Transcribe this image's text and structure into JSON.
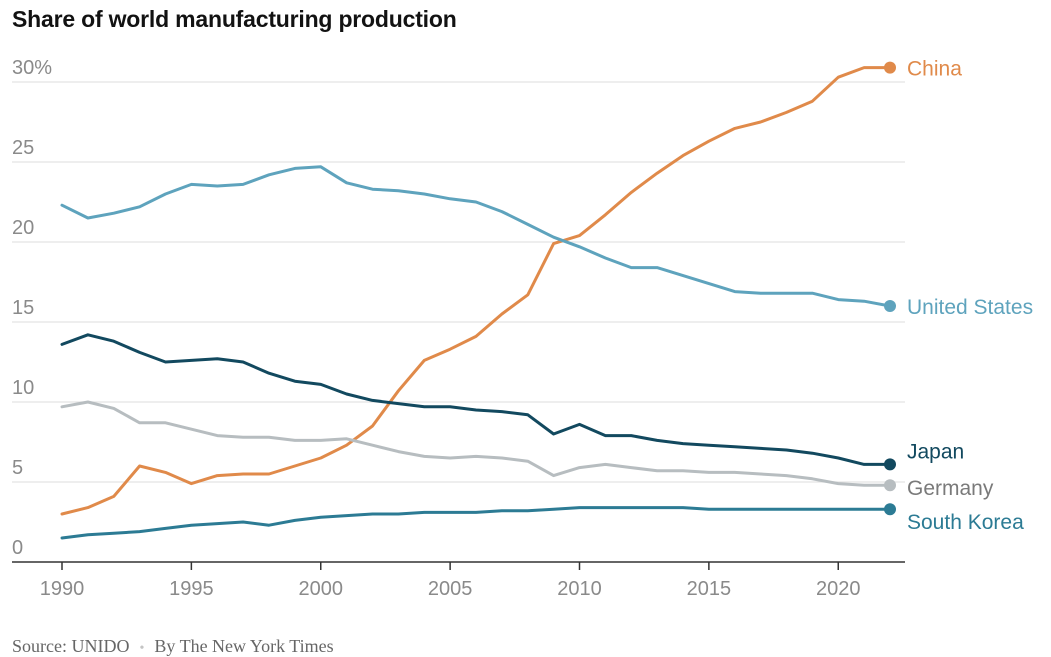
{
  "chart_data": {
    "type": "line",
    "title": "Share of world manufacturing production",
    "x": [
      1990,
      1991,
      1992,
      1993,
      1994,
      1995,
      1996,
      1997,
      1998,
      1999,
      2000,
      2001,
      2002,
      2003,
      2004,
      2005,
      2006,
      2007,
      2008,
      2009,
      2010,
      2011,
      2012,
      2013,
      2014,
      2015,
      2016,
      2017,
      2018,
      2019,
      2020,
      2021,
      2022
    ],
    "xlim": [
      1990,
      2022
    ],
    "ylim": [
      0,
      30
    ],
    "x_ticks": [
      1990,
      1995,
      2000,
      2005,
      2010,
      2015,
      2020
    ],
    "y_ticks": [
      0,
      5,
      10,
      15,
      20,
      25,
      30
    ],
    "y_tick_labels": [
      "0",
      "5",
      "10",
      "15",
      "20",
      "25",
      "30%"
    ],
    "grid": "horizontal",
    "legend": "direct labels at line ends",
    "series": [
      {
        "name": "China",
        "color": "#e08a4a",
        "values": [
          3.0,
          3.4,
          4.1,
          6.0,
          5.6,
          4.9,
          5.4,
          5.5,
          5.5,
          6.0,
          6.5,
          7.3,
          8.5,
          10.7,
          12.6,
          13.3,
          14.1,
          15.5,
          16.7,
          19.9,
          20.4,
          21.7,
          23.1,
          24.3,
          25.4,
          26.3,
          27.1,
          27.5,
          28.1,
          28.8,
          30.3,
          30.9,
          30.9
        ]
      },
      {
        "name": "United States",
        "color": "#5ea3bd",
        "values": [
          22.3,
          21.5,
          21.8,
          22.2,
          23.0,
          23.6,
          23.5,
          23.6,
          24.2,
          24.6,
          24.7,
          23.7,
          23.3,
          23.2,
          23.0,
          22.7,
          22.5,
          21.9,
          21.1,
          20.3,
          19.7,
          19.0,
          18.4,
          18.4,
          17.9,
          17.4,
          16.9,
          16.8,
          16.8,
          16.8,
          16.4,
          16.3,
          16.0
        ]
      },
      {
        "name": "Japan",
        "color": "#12495f",
        "values": [
          13.6,
          14.2,
          13.8,
          13.1,
          12.5,
          12.6,
          12.7,
          12.5,
          11.8,
          11.3,
          11.1,
          10.5,
          10.1,
          9.9,
          9.7,
          9.7,
          9.5,
          9.4,
          9.2,
          8.0,
          8.6,
          7.9,
          7.9,
          7.6,
          7.4,
          7.3,
          7.2,
          7.1,
          7.0,
          6.8,
          6.5,
          6.1,
          6.1
        ]
      },
      {
        "name": "Germany",
        "color": "#b7bdc0",
        "values": [
          9.7,
          10.0,
          9.6,
          8.7,
          8.7,
          8.3,
          7.9,
          7.8,
          7.8,
          7.6,
          7.6,
          7.7,
          7.3,
          6.9,
          6.6,
          6.5,
          6.6,
          6.5,
          6.3,
          5.4,
          5.9,
          6.1,
          5.9,
          5.7,
          5.7,
          5.6,
          5.6,
          5.5,
          5.4,
          5.2,
          4.9,
          4.8,
          4.8
        ]
      },
      {
        "name": "South Korea",
        "color": "#2c7b94",
        "values": [
          1.5,
          1.7,
          1.8,
          1.9,
          2.1,
          2.3,
          2.4,
          2.5,
          2.3,
          2.6,
          2.8,
          2.9,
          3.0,
          3.0,
          3.1,
          3.1,
          3.1,
          3.2,
          3.2,
          3.3,
          3.4,
          3.4,
          3.4,
          3.4,
          3.4,
          3.3,
          3.3,
          3.3,
          3.3,
          3.3,
          3.3,
          3.3,
          3.3
        ]
      }
    ]
  },
  "source": {
    "text": "Source: UNIDO",
    "separator": "•",
    "byline": "By The New York Times"
  }
}
